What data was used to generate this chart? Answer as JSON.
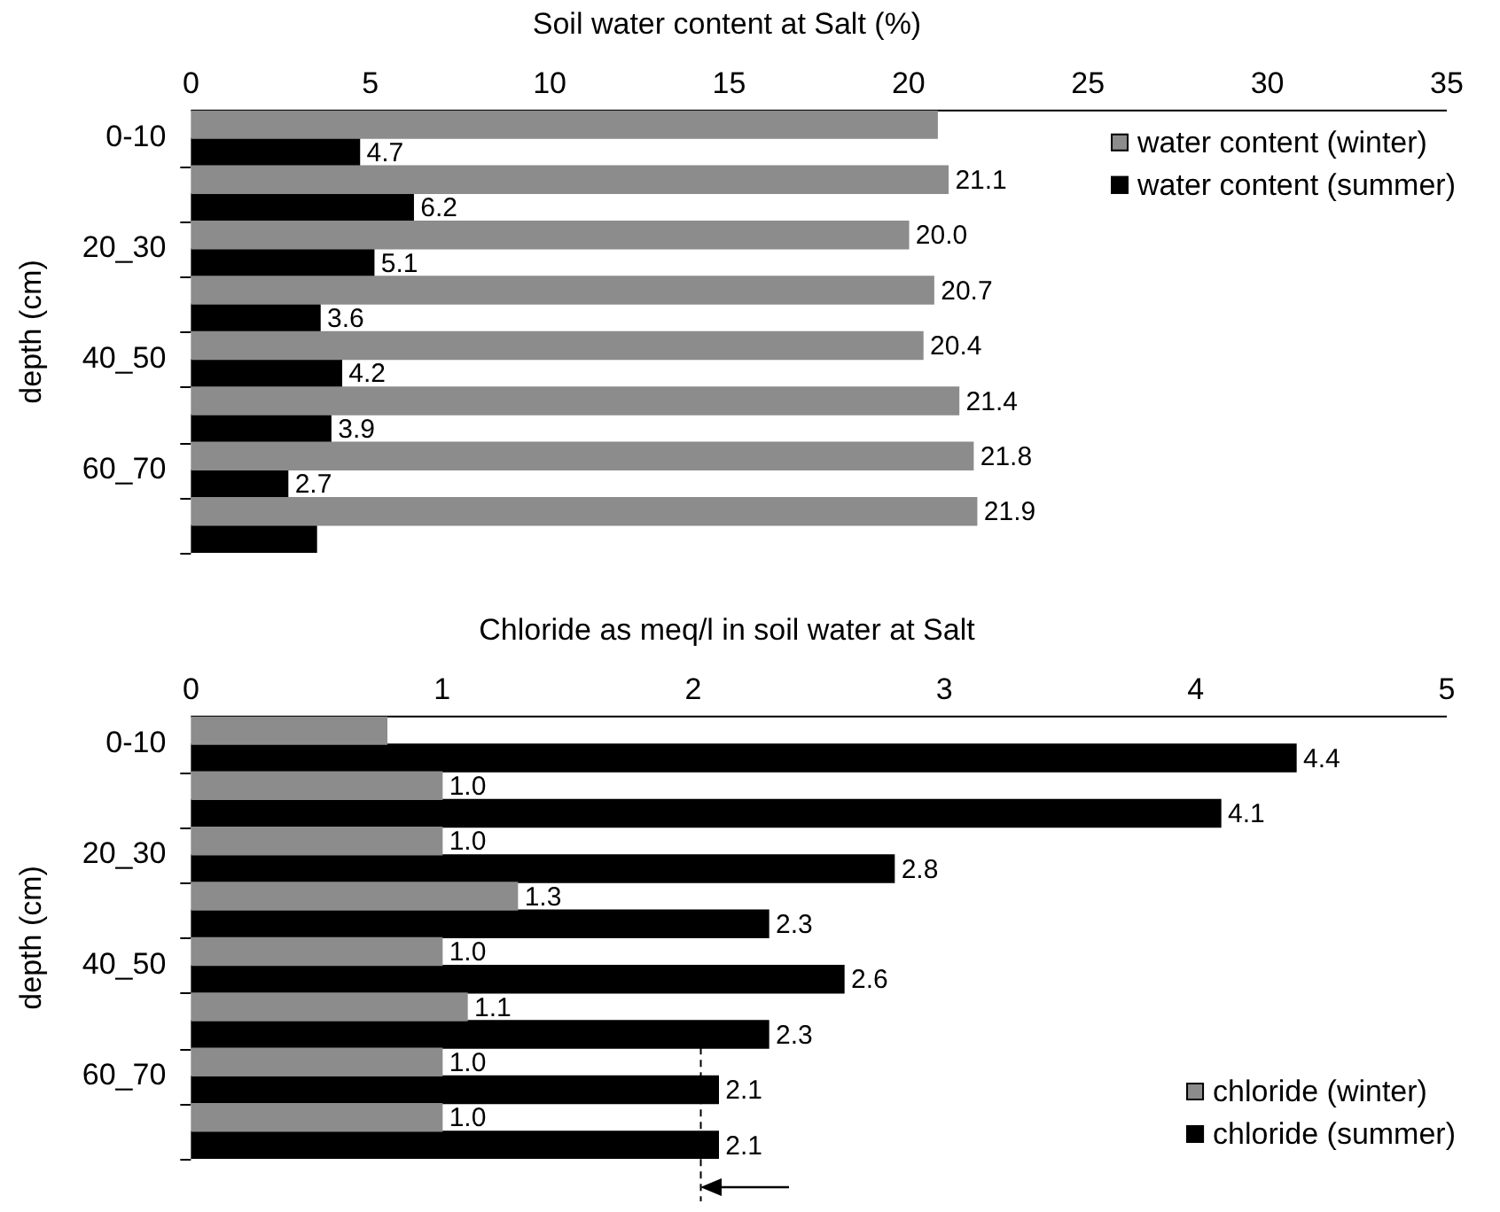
{
  "chart_data": [
    {
      "type": "bar",
      "orientation": "horizontal",
      "title": "Soil water content at Salt (%)",
      "ylabel": "depth (cm)",
      "categories": [
        "0-10",
        null,
        "20_30",
        null,
        "40_50",
        null,
        "60_70",
        null
      ],
      "series": [
        {
          "name": "water content (winter)",
          "color": "#8c8c8c",
          "values": [
            20.8,
            21.1,
            20.0,
            20.7,
            20.4,
            21.4,
            21.8,
            21.9
          ],
          "value_labels": [
            null,
            "21.1",
            "20.0",
            "20.7",
            "20.4",
            "21.4",
            "21.8",
            "21.9"
          ]
        },
        {
          "name": "water content (summer)",
          "color": "#000000",
          "values": [
            4.7,
            6.2,
            5.1,
            3.6,
            4.2,
            3.9,
            2.7,
            3.5
          ],
          "value_labels": [
            "4.7",
            "6.2",
            "5.1",
            "3.6",
            "4.2",
            "3.9",
            "2.7",
            null
          ]
        }
      ],
      "xlim": [
        0,
        35
      ],
      "xticks": [
        0,
        5,
        10,
        15,
        20,
        25,
        30,
        35
      ],
      "legend": "top right"
    },
    {
      "type": "bar",
      "orientation": "horizontal",
      "title": "Chloride as meq/l in soil water at Salt",
      "ylabel": "depth (cm)",
      "categories": [
        "0-10",
        null,
        "20_30",
        null,
        "40_50",
        null,
        "60_70",
        null
      ],
      "series": [
        {
          "name": "chloride (winter)",
          "color": "#8c8c8c",
          "values": [
            0.78,
            1.0,
            1.0,
            1.3,
            1.0,
            1.1,
            1.0,
            1.0
          ],
          "value_labels": [
            null,
            "1.0",
            "1.0",
            "1.3",
            "1.0",
            "1.1",
            "1.0",
            "1.0"
          ]
        },
        {
          "name": "chloride (summer)",
          "color": "#000000",
          "values": [
            4.4,
            4.1,
            2.8,
            2.3,
            2.6,
            2.3,
            2.1,
            2.1
          ],
          "value_labels": [
            "4.4",
            "4.1",
            "2.8",
            "2.3",
            "2.6",
            "2.3",
            "2.1",
            "2.1"
          ]
        }
      ],
      "xlim": [
        0,
        5
      ],
      "xticks": [
        0,
        1,
        2,
        3,
        4,
        5
      ],
      "legend": "bottom right",
      "ref_lines": [
        {
          "axis": "x",
          "value": 2.03,
          "color": "#000000",
          "line_style": "dashed"
        }
      ]
    }
  ]
}
